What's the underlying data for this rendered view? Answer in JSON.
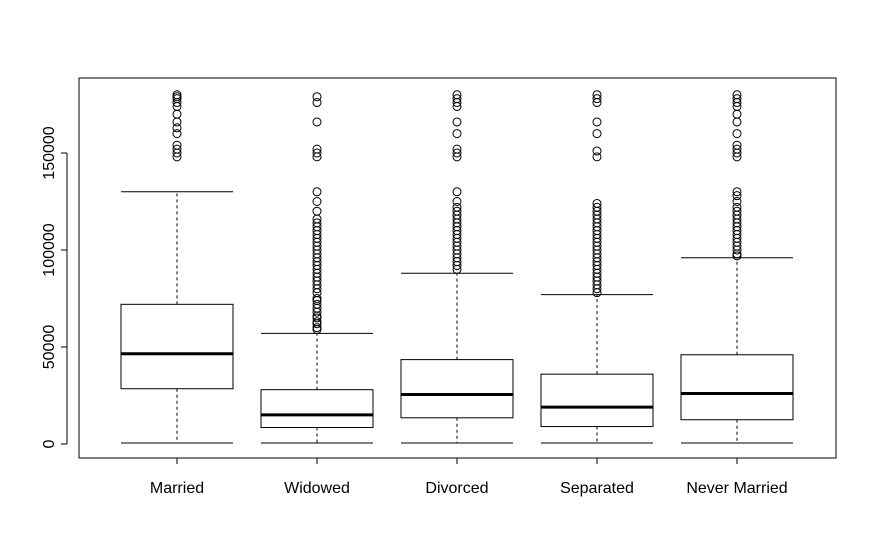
{
  "chart_data": {
    "type": "boxplot",
    "title": "",
    "xlabel": "",
    "ylabel": "",
    "ylim": [
      -6000,
      188000
    ],
    "y_ticks": [
      0,
      50000,
      100000,
      150000
    ],
    "y_tick_labels": [
      "0",
      "50000",
      "100000",
      "150000"
    ],
    "categories": [
      "Married",
      "Widowed",
      "Divorced",
      "Separated",
      "Never Married"
    ],
    "boxes": [
      {
        "whisker_low": 500,
        "q1": 28500,
        "median": 46500,
        "q3": 72000,
        "whisker_high": 130000,
        "outliers": [
          148000,
          150000,
          152000,
          154000,
          160000,
          163000,
          166000,
          170000,
          174000,
          176000,
          178000,
          179000,
          180000
        ]
      },
      {
        "whisker_low": 500,
        "q1": 8500,
        "median": 15000,
        "q3": 28000,
        "whisker_high": 57000,
        "outliers": [
          59000,
          60000,
          62000,
          63000,
          65000,
          66000,
          68000,
          70000,
          72000,
          74000,
          75000,
          78000,
          80000,
          82000,
          84000,
          86000,
          88000,
          90000,
          92000,
          94000,
          96000,
          98000,
          100000,
          102000,
          104000,
          106000,
          108000,
          110000,
          112000,
          114000,
          116000,
          120000,
          125000,
          130000,
          148000,
          150000,
          152000,
          166000,
          176000,
          179000
        ]
      },
      {
        "whisker_low": 500,
        "q1": 13500,
        "median": 25500,
        "q3": 43500,
        "whisker_high": 88000,
        "outliers": [
          90000,
          92000,
          94000,
          96000,
          98000,
          100000,
          102000,
          104000,
          106000,
          108000,
          110000,
          112000,
          114000,
          116000,
          118000,
          120000,
          122000,
          125000,
          130000,
          148000,
          150000,
          152000,
          160000,
          166000,
          174000,
          176000,
          178000,
          180000
        ]
      },
      {
        "whisker_low": 500,
        "q1": 9000,
        "median": 19000,
        "q3": 36000,
        "whisker_high": 77000,
        "outliers": [
          78000,
          80000,
          82000,
          84000,
          86000,
          88000,
          90000,
          92000,
          94000,
          96000,
          98000,
          100000,
          102000,
          104000,
          106000,
          108000,
          110000,
          112000,
          114000,
          116000,
          118000,
          120000,
          122000,
          124000,
          148000,
          151000,
          160000,
          166000,
          176000,
          178000,
          180000
        ]
      },
      {
        "whisker_low": 500,
        "q1": 12500,
        "median": 26000,
        "q3": 46000,
        "whisker_high": 96000,
        "outliers": [
          97000,
          98000,
          100000,
          102000,
          104000,
          106000,
          108000,
          110000,
          112000,
          114000,
          116000,
          118000,
          120000,
          122000,
          125000,
          128000,
          130000,
          148000,
          150000,
          152000,
          154000,
          160000,
          166000,
          170000,
          174000,
          176000,
          178000,
          180000
        ]
      }
    ]
  }
}
